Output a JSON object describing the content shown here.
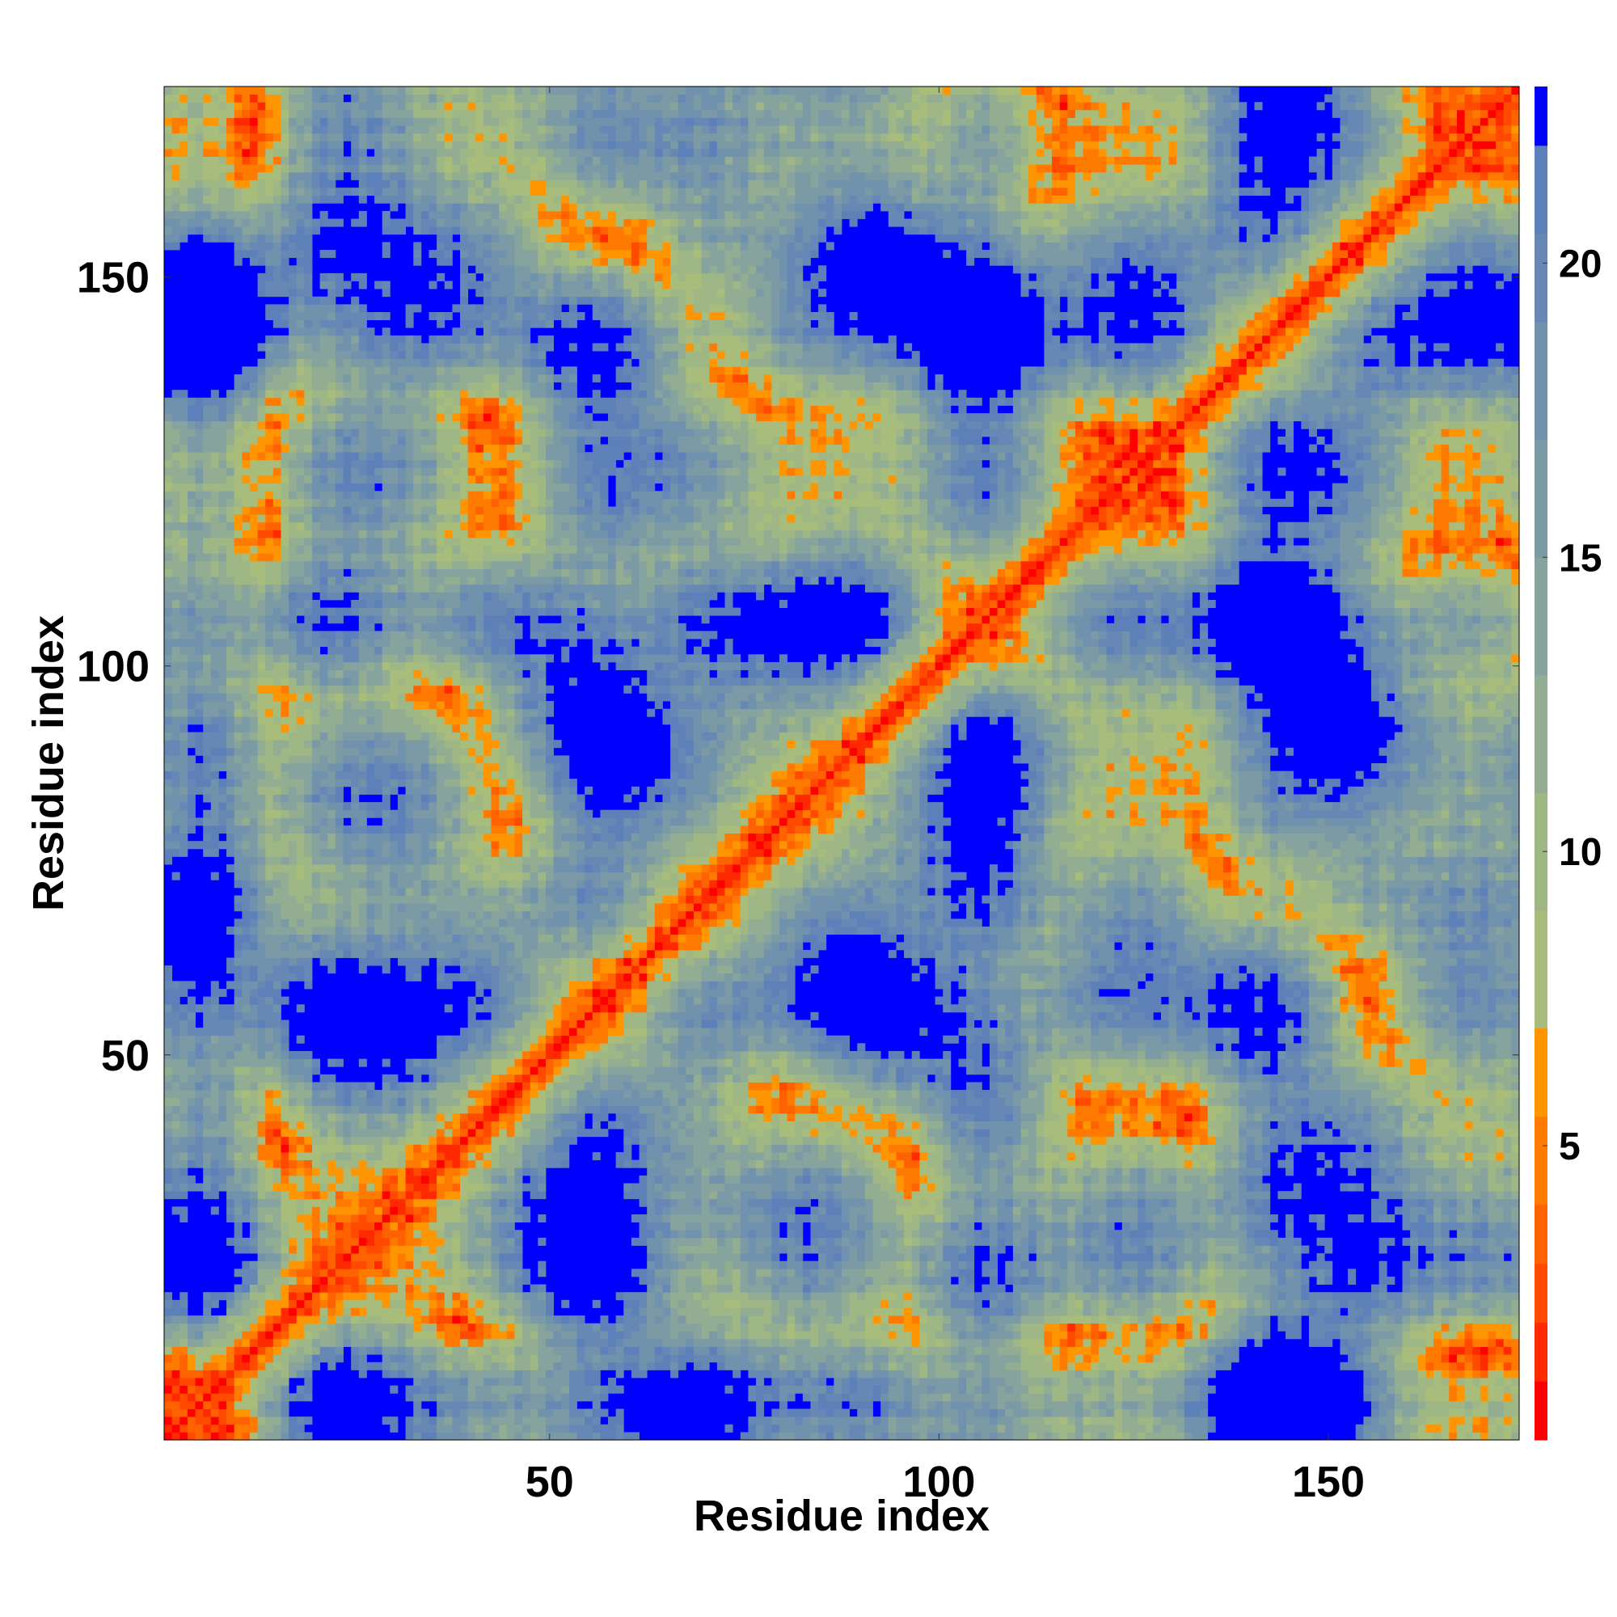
{
  "chart_data": {
    "type": "heatmap",
    "title": "",
    "xlabel": "Residue index",
    "ylabel": "Residue index",
    "xlim": [
      0.5,
      174.5
    ],
    "ylim": [
      0.5,
      174.5
    ],
    "n_residues": 174,
    "x_ticks": [
      50,
      100,
      150
    ],
    "y_ticks": [
      50,
      100,
      150
    ],
    "colorbar": {
      "range": [
        0,
        23
      ],
      "ticks": [
        5,
        10,
        15,
        20
      ],
      "levels": [
        {
          "from": 0,
          "to": 1,
          "color": "#ff0000"
        },
        {
          "from": 1,
          "to": 2,
          "color": "#ff2a00"
        },
        {
          "from": 2,
          "to": 3,
          "color": "#ff4a00"
        },
        {
          "from": 3,
          "to": 4,
          "color": "#ff6200"
        },
        {
          "from": 4,
          "to": 5.5,
          "color": "#ff7a00"
        },
        {
          "from": 5.5,
          "to": 7,
          "color": "#ff9500"
        },
        {
          "from": 7,
          "to": 9,
          "color": "#a8bd7c"
        },
        {
          "from": 9,
          "to": 11,
          "color": "#9fb785"
        },
        {
          "from": 11,
          "to": 13,
          "color": "#92ad92"
        },
        {
          "from": 13,
          "to": 15,
          "color": "#86a39d"
        },
        {
          "from": 15,
          "to": 17,
          "color": "#7b9aa6"
        },
        {
          "from": 17,
          "to": 19,
          "color": "#7092ad"
        },
        {
          "from": 19,
          "to": 20.5,
          "color": "#6788b4"
        },
        {
          "from": 20.5,
          "to": 22,
          "color": "#5d80b8"
        },
        {
          "from": 22,
          "to": 23,
          "color": "#0000ff"
        }
      ]
    },
    "background_color": "#0000ff",
    "description_of_values": "Pairwise residue distance map; red diagonal (distance ~0), orange near-contacts, gray-green intermediate distances, blue beyond cutoff",
    "contact_regions": [
      {
        "x": [
          3,
          25
        ],
        "y": [
          3,
          25
        ],
        "label_hint": ""
      },
      {
        "x": [
          5,
          25
        ],
        "y": [
          85,
          165
        ]
      },
      {
        "x": [
          30,
          60
        ],
        "y": [
          85,
          115
        ]
      },
      {
        "x": [
          50,
          95
        ],
        "y": [
          120,
          165
        ]
      },
      {
        "x": [
          100,
          160
        ],
        "y": [
          100,
          165
        ]
      },
      {
        "x": [
          120,
          165
        ],
        "y": [
          65,
          100
        ]
      },
      {
        "x": [
          80,
          110
        ],
        "y": [
          40,
          70
        ]
      },
      {
        "x": [
          75,
          165
        ],
        "y": [
          3,
          25
        ]
      },
      {
        "x": [
          20,
          70
        ],
        "y": [
          5,
          60
        ]
      }
    ]
  }
}
